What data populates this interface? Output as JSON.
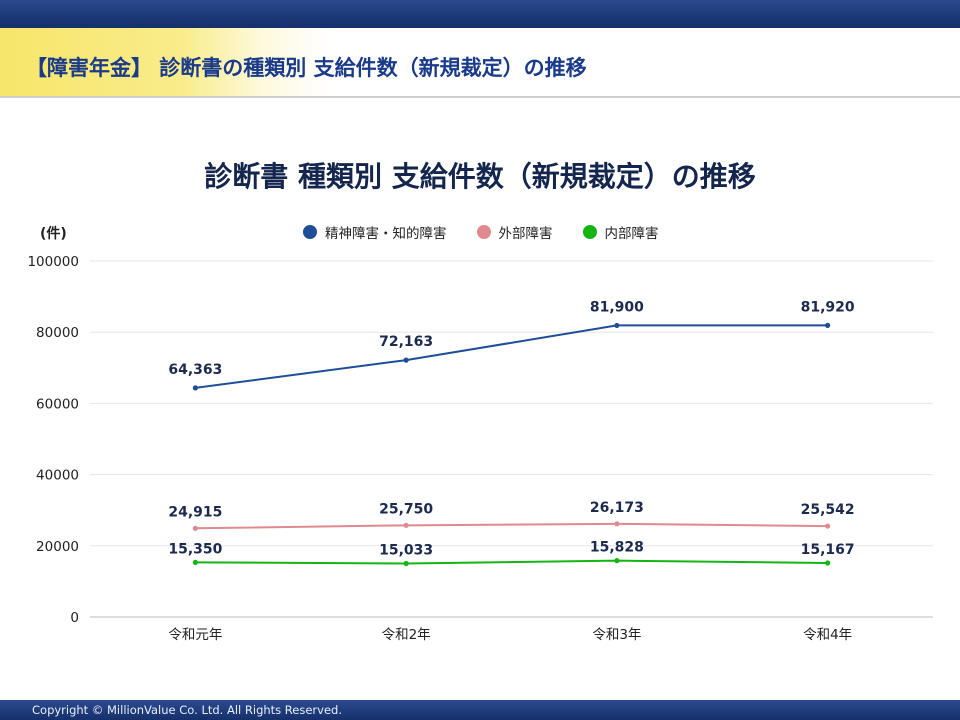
{
  "header": {
    "title": "【障害年金】 診断書の種類別 支給件数（新規裁定）の推移"
  },
  "footer": {
    "copyright": "Copyright © MillionValue Co. Ltd. All Rights Reserved."
  },
  "colors": {
    "series1": "#1f4e99",
    "series2": "#e08a8f",
    "series3": "#12b512"
  },
  "chart_data": {
    "type": "line",
    "title": "診断書 種類別 支給件数（新規裁定）の推移",
    "ylabel": "(件)",
    "xlabel": "",
    "categories": [
      "令和元年",
      "令和2年",
      "令和3年",
      "令和4年"
    ],
    "ylim": [
      0,
      100000
    ],
    "yticks": [
      "0",
      "20000",
      "40000",
      "60000",
      "80000",
      "100000"
    ],
    "grid": true,
    "legend_position": "top",
    "series": [
      {
        "name": "精神障害・知的障害",
        "values": [
          64363,
          72163,
          81900,
          81920
        ],
        "labels": [
          "64,363",
          "72,163",
          "81,900",
          "81,920"
        ]
      },
      {
        "name": "外部障害",
        "values": [
          24915,
          25750,
          26173,
          25542
        ],
        "labels": [
          "24,915",
          "25,750",
          "26,173",
          "25,542"
        ]
      },
      {
        "name": "内部障害",
        "values": [
          15350,
          15033,
          15828,
          15167
        ],
        "labels": [
          "15,350",
          "15,033",
          "15,828",
          "15,167"
        ]
      }
    ]
  }
}
